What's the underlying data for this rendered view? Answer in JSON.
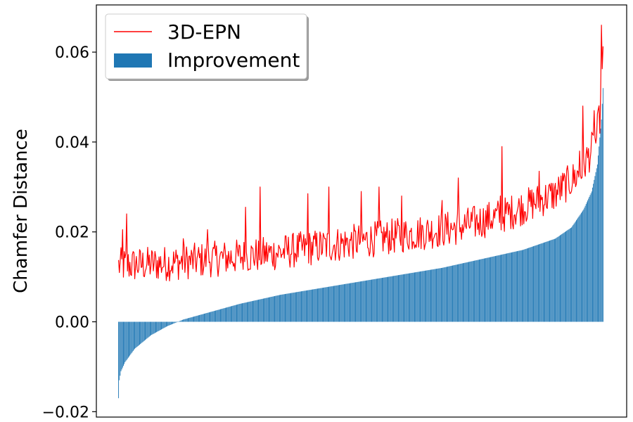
{
  "chart_data": {
    "type": "bar",
    "title": "",
    "xlabel": "",
    "ylabel": "Chamfer Distance",
    "ylim": [
      -0.0212,
      0.0705
    ],
    "yticks": [
      {
        "value": -0.02,
        "label": "−0.02"
      },
      {
        "value": 0.0,
        "label": "0.00"
      },
      {
        "value": 0.02,
        "label": "0.02"
      },
      {
        "value": 0.04,
        "label": "0.04"
      },
      {
        "value": 0.06,
        "label": "0.06"
      }
    ],
    "xticks": [],
    "grid": false,
    "legend_position": "top-left",
    "sample_count": 600,
    "series": [
      {
        "name": "3D-EPN",
        "kind": "line",
        "color": "#ff0000",
        "trend_points": [
          [
            0,
            0.0125
          ],
          [
            60,
            0.013
          ],
          [
            120,
            0.014
          ],
          [
            180,
            0.015
          ],
          [
            240,
            0.0165
          ],
          [
            300,
            0.018
          ],
          [
            360,
            0.0195
          ],
          [
            420,
            0.021
          ],
          [
            480,
            0.024
          ],
          [
            540,
            0.0285
          ],
          [
            570,
            0.033
          ],
          [
            590,
            0.04
          ],
          [
            596,
            0.047
          ],
          [
            599,
            0.059
          ]
        ],
        "noise_amplitude": 0.004,
        "spikes": [
          [
            5,
            0.0205
          ],
          [
            10,
            0.024
          ],
          [
            80,
            0.0185
          ],
          [
            110,
            0.0205
          ],
          [
            157,
            0.0255
          ],
          [
            175,
            0.03
          ],
          [
            234,
            0.0285
          ],
          [
            260,
            0.03
          ],
          [
            300,
            0.029
          ],
          [
            322,
            0.03
          ],
          [
            350,
            0.028
          ],
          [
            400,
            0.027
          ],
          [
            420,
            0.032
          ],
          [
            472,
            0.028
          ],
          [
            474,
            0.039
          ],
          [
            520,
            0.0335
          ],
          [
            570,
            0.038
          ],
          [
            574,
            0.048
          ],
          [
            588,
            0.047
          ],
          [
            597,
            0.066
          ]
        ]
      },
      {
        "name": "Improvement",
        "kind": "bar",
        "color": "#1f77b4",
        "trend_points": [
          [
            0,
            -0.017
          ],
          [
            1,
            -0.013
          ],
          [
            3,
            -0.011
          ],
          [
            8,
            -0.009
          ],
          [
            20,
            -0.006
          ],
          [
            40,
            -0.003
          ],
          [
            60,
            -0.001
          ],
          [
            80,
            0.0005
          ],
          [
            110,
            0.002
          ],
          [
            150,
            0.004
          ],
          [
            200,
            0.006
          ],
          [
            250,
            0.0075
          ],
          [
            300,
            0.009
          ],
          [
            350,
            0.0105
          ],
          [
            400,
            0.012
          ],
          [
            450,
            0.014
          ],
          [
            500,
            0.016
          ],
          [
            540,
            0.0185
          ],
          [
            560,
            0.021
          ],
          [
            575,
            0.025
          ],
          [
            585,
            0.029
          ],
          [
            592,
            0.035
          ],
          [
            597,
            0.045
          ],
          [
            599,
            0.052
          ]
        ]
      }
    ]
  }
}
